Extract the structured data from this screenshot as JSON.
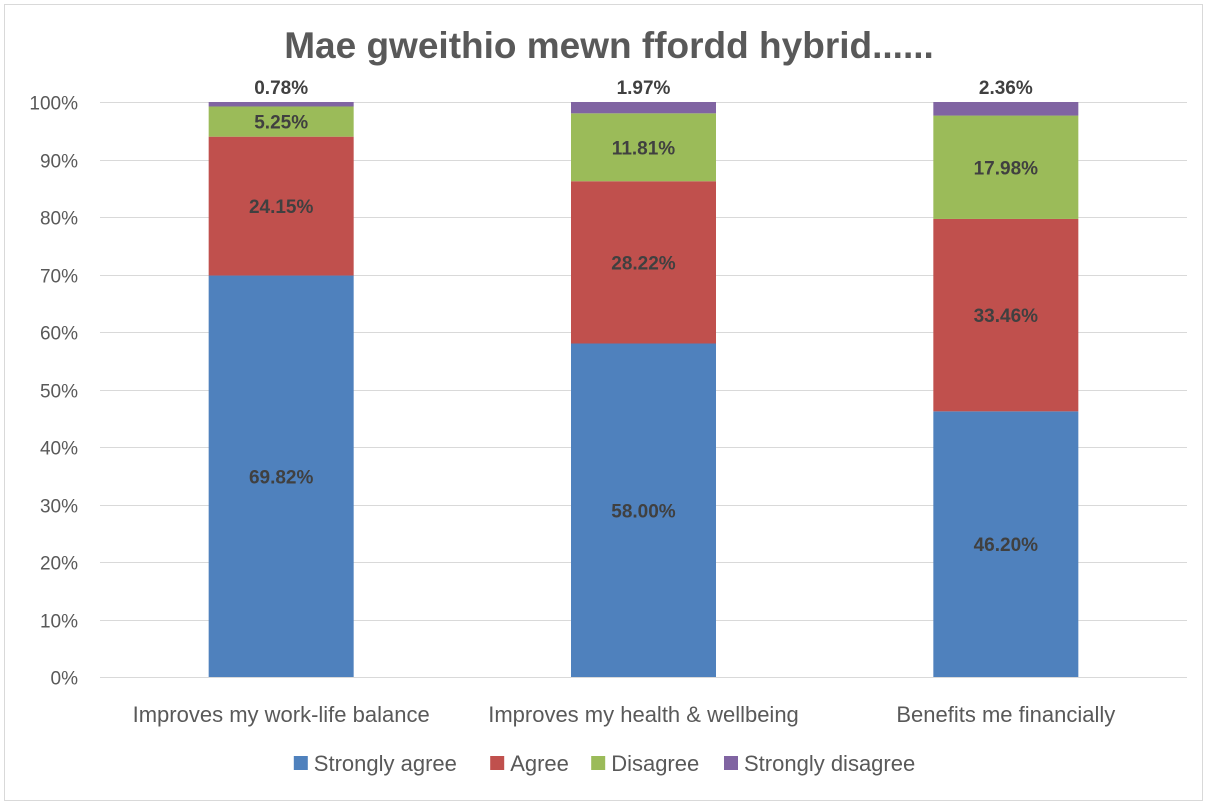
{
  "chart_data": {
    "type": "bar",
    "stacked": true,
    "percent_stacked": true,
    "title": "Mae gweithio mewn ffordd hybrid......",
    "xlabel": "",
    "ylabel": "",
    "ylim": [
      0,
      100
    ],
    "y_ticks": [
      "0%",
      "10%",
      "20%",
      "30%",
      "40%",
      "50%",
      "60%",
      "70%",
      "80%",
      "90%",
      "100%"
    ],
    "grid": true,
    "legend_position": "bottom",
    "categories": [
      "Improves my work-life balance",
      "Improves my health & wellbeing",
      "Benefits me financially"
    ],
    "series": [
      {
        "name": "Strongly agree",
        "color": "#4f81bd",
        "values": [
          69.82,
          58.0,
          46.2
        ],
        "labels": [
          "69.82%",
          "58.00%",
          "46.20%"
        ]
      },
      {
        "name": "Agree",
        "color": "#c0504d",
        "values": [
          24.15,
          28.22,
          33.46
        ],
        "labels": [
          "24.15%",
          "28.22%",
          "33.46%"
        ]
      },
      {
        "name": "Disagree",
        "color": "#9bbb59",
        "values": [
          5.25,
          11.81,
          17.98
        ],
        "labels": [
          "5.25%",
          "11.81%",
          "17.98%"
        ]
      },
      {
        "name": "Strongly disagree",
        "color": "#8064a2",
        "values": [
          0.78,
          1.97,
          2.36
        ],
        "labels": [
          "0.78%",
          "1.97%",
          "2.36%"
        ]
      }
    ]
  }
}
